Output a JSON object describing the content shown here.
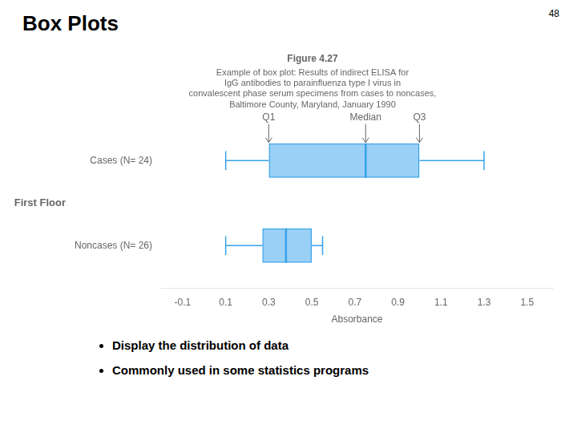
{
  "chart_data": {
    "type": "box",
    "orientation": "horizontal",
    "title": "Box Plots",
    "slide_number": "48",
    "figure_title": "Figure 4.27",
    "figure_subtitle": "Example of box plot: Results of indirect ELISA for\nIgG antibodies to parainfluenza type I virus in\nconvalescent phase serum specimens from cases to noncases,\nBaltimore County, Maryland, January 1990",
    "group_label": "First Floor",
    "categories": [
      "Cases (N= 24)",
      "Noncases (N= 26)"
    ],
    "values": [
      {
        "whisker_low": 0.1,
        "q1": 0.3,
        "median": 0.75,
        "q3": 1.0,
        "whisker_high": 1.3
      },
      {
        "whisker_low": 0.1,
        "q1": 0.27,
        "median": 0.38,
        "q3": 0.5,
        "whisker_high": 0.55
      }
    ],
    "xlabel": "Absorbance",
    "xlim": [
      -0.2,
      1.62
    ],
    "xticks": [
      -0.1,
      0.1,
      0.3,
      0.5,
      0.7,
      0.9,
      1.1,
      1.3,
      1.5
    ],
    "grid": false,
    "annotations": [
      {
        "text": "Q1",
        "x": 0.3
      },
      {
        "text": "Median",
        "x": 0.75
      },
      {
        "text": "Q3",
        "x": 1.0
      }
    ],
    "bullets": [
      "Display the distribution of data",
      "Commonly used in some statistics programs"
    ]
  }
}
